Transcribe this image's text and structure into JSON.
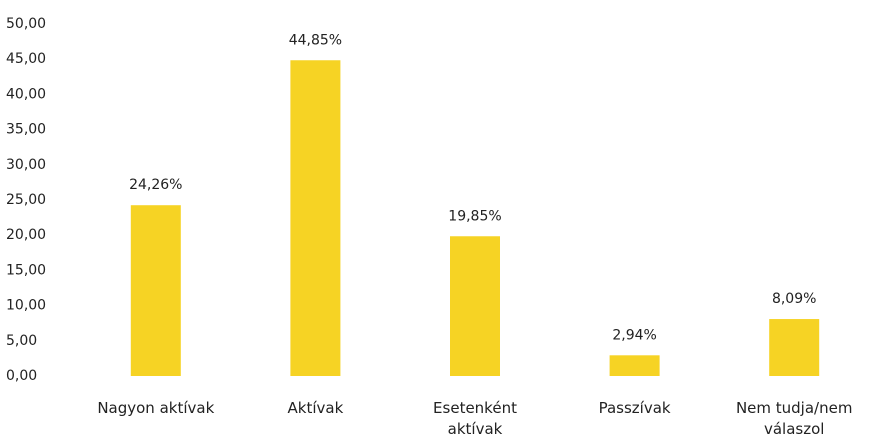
{
  "chart_data": {
    "type": "bar",
    "categories": [
      "Nagyon aktívak",
      "Aktívak",
      "Esetenként\naktívak",
      "Passzívak",
      "Nem tudja/nem\nválaszol"
    ],
    "values": [
      24.26,
      44.85,
      19.85,
      2.94,
      8.09
    ],
    "value_labels": [
      "24,26%",
      "44,85%",
      "19,85%",
      "2,94%",
      "8,09%"
    ],
    "color": "#f6d324",
    "ylim": [
      0,
      50
    ],
    "yticks": [
      {
        "value": 0,
        "label": "0,00"
      },
      {
        "value": 5,
        "label": "5,00"
      },
      {
        "value": 10,
        "label": "10,00"
      },
      {
        "value": 15,
        "label": "15,00"
      },
      {
        "value": 20,
        "label": "20,00"
      },
      {
        "value": 25,
        "label": "25,00"
      },
      {
        "value": 30,
        "label": "30,00"
      },
      {
        "value": 35,
        "label": "35,00"
      },
      {
        "value": 40,
        "label": "40,00"
      },
      {
        "value": 45,
        "label": "45,00"
      },
      {
        "value": 50,
        "label": "50,00"
      }
    ],
    "grid": false
  }
}
